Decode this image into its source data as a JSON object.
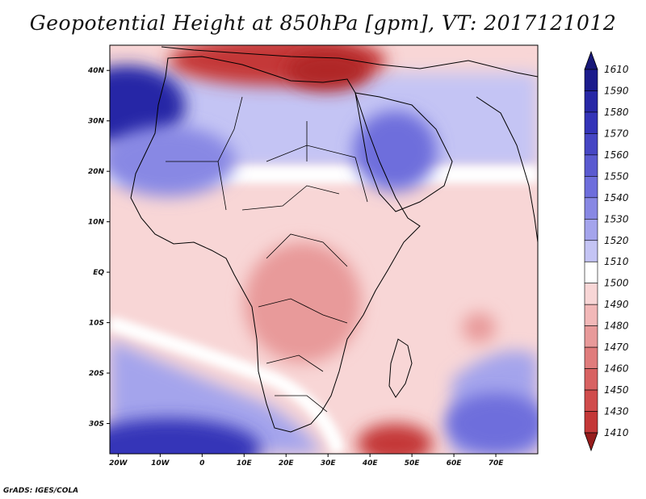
{
  "title": "Geopotential Height at 850hPa [gpm], VT: 2017121012",
  "credit": "GrADS: IGES/COLA",
  "map": {
    "lon_range": [
      -22,
      80
    ],
    "lat_range": [
      -36,
      45
    ],
    "lon_ticks": [
      {
        "lon": -20,
        "label": "20W"
      },
      {
        "lon": -10,
        "label": "10W"
      },
      {
        "lon": 0,
        "label": "0"
      },
      {
        "lon": 10,
        "label": "10E"
      },
      {
        "lon": 20,
        "label": "20E"
      },
      {
        "lon": 30,
        "label": "30E"
      },
      {
        "lon": 40,
        "label": "40E"
      },
      {
        "lon": 50,
        "label": "50E"
      },
      {
        "lon": 60,
        "label": "60E"
      },
      {
        "lon": 70,
        "label": "70E"
      }
    ],
    "lat_ticks": [
      {
        "lat": 40,
        "label": "40N"
      },
      {
        "lat": 30,
        "label": "30N"
      },
      {
        "lat": 20,
        "label": "20N"
      },
      {
        "lat": 10,
        "label": "10N"
      },
      {
        "lat": 0,
        "label": "EQ"
      },
      {
        "lat": -10,
        "label": "10S"
      },
      {
        "lat": -20,
        "label": "20S"
      },
      {
        "lat": -30,
        "label": "30S"
      }
    ]
  },
  "colorbar": {
    "levels": [
      {
        "label": "1610",
        "color": "#1c1c8c"
      },
      {
        "label": "1590",
        "color": "#2828a6"
      },
      {
        "label": "1580",
        "color": "#3434b8"
      },
      {
        "label": "1570",
        "color": "#4646c4"
      },
      {
        "label": "1560",
        "color": "#5a5ad0"
      },
      {
        "label": "1550",
        "color": "#6e6edc"
      },
      {
        "label": "1540",
        "color": "#8888e4"
      },
      {
        "label": "1530",
        "color": "#a4a4ec"
      },
      {
        "label": "1520",
        "color": "#c4c4f4"
      },
      {
        "label": "1510",
        "color": "#ffffff"
      },
      {
        "label": "1500",
        "color": "#f8d6d6"
      },
      {
        "label": "1490",
        "color": "#f2b8b8"
      },
      {
        "label": "1480",
        "color": "#e89a9a"
      },
      {
        "label": "1470",
        "color": "#e07c7c"
      },
      {
        "label": "1460",
        "color": "#d86262"
      },
      {
        "label": "1450",
        "color": "#d04c4c"
      },
      {
        "label": "1430",
        "color": "#c43838"
      },
      {
        "label": "1410",
        "color": "#b02626"
      }
    ],
    "cap_top_color": "#181878",
    "cap_bottom_color": "#961c1c"
  },
  "field_features": [
    {
      "name": "north-med-high",
      "lon": 18,
      "lat": 42,
      "rlon": 26,
      "rlat": 5,
      "color": "#c43838"
    },
    {
      "name": "aegean-high",
      "lon": 30,
      "lat": 40,
      "rlon": 10,
      "rlat": 4,
      "color": "#b02626"
    },
    {
      "name": "atlantic-low",
      "lon": -18,
      "lat": 33,
      "rlon": 14,
      "rlat": 8,
      "color": "#2828a6"
    },
    {
      "name": "sahara-low",
      "lon": -8,
      "lat": 22,
      "rlon": 16,
      "rlat": 7,
      "color": "#8888e4"
    },
    {
      "name": "arabia-low",
      "lon": 46,
      "lat": 24,
      "rlon": 10,
      "rlat": 8,
      "color": "#6e6edc"
    },
    {
      "name": "central-africa-high",
      "lon": 24,
      "lat": -6,
      "rlon": 14,
      "rlat": 12,
      "color": "#e89a9a"
    },
    {
      "name": "mozambique-high",
      "lon": 46,
      "lat": -34,
      "rlon": 9,
      "rlat": 4,
      "color": "#c43838"
    },
    {
      "name": "indian-high",
      "lon": 66,
      "lat": -11,
      "rlon": 4,
      "rlat": 3,
      "color": "#e89a9a"
    },
    {
      "name": "south-atlantic-low",
      "lon": -8,
      "lat": -35,
      "rlon": 22,
      "rlat": 6,
      "color": "#3434b8"
    },
    {
      "name": "southeast-low",
      "lon": 70,
      "lat": -30,
      "rlon": 12,
      "rlat": 6,
      "color": "#6e6edc"
    }
  ]
}
